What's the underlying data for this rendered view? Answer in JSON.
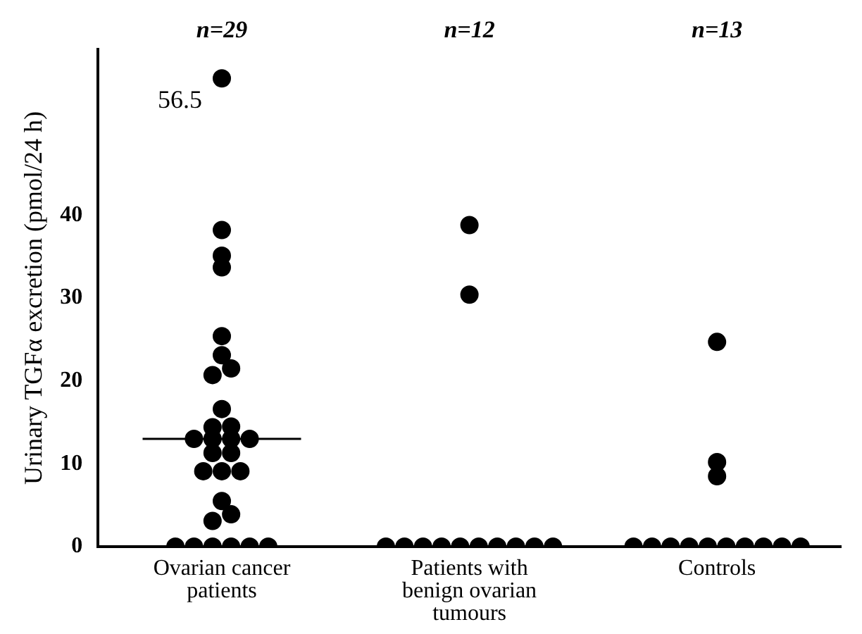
{
  "chart_data": {
    "type": "scatter",
    "ylabel": "Urinary TGFα excretion (pmol/24 h)",
    "categories": [
      "Ovarian cancer patients",
      "Patients with benign ovarian tumours",
      "Controls"
    ],
    "series": [
      {
        "color": "#000000",
        "x": [
          "Ovarian cancer patients",
          "Ovarian cancer patients",
          "Ovarian cancer patients",
          "Ovarian cancer patients",
          "Ovarian cancer patients",
          "Ovarian cancer patients",
          "Ovarian cancer patients",
          "Ovarian cancer patients",
          "Ovarian cancer patients",
          "Ovarian cancer patients",
          "Ovarian cancer patients",
          "Ovarian cancer patients",
          "Ovarian cancer patients",
          "Ovarian cancer patients",
          "Ovarian cancer patients",
          "Ovarian cancer patients",
          "Ovarian cancer patients",
          "Ovarian cancer patients",
          "Ovarian cancer patients",
          "Ovarian cancer patients",
          "Ovarian cancer patients",
          "Ovarian cancer patients",
          "Ovarian cancer patients",
          "Ovarian cancer patients",
          "Ovarian cancer patients",
          "Ovarian cancer patients",
          "Ovarian cancer patients",
          "Ovarian cancer patients",
          "Ovarian cancer patients"
        ],
        "values": [
          56.5,
          38.2,
          35.1,
          33.7,
          25.4,
          23.1,
          21.5,
          20.7,
          16.6,
          14.5,
          14.4,
          13,
          13,
          13,
          13,
          11.3,
          11.3,
          9.1,
          9.1,
          9.1,
          5.5,
          3.9,
          3.1,
          0,
          0,
          0,
          0,
          0,
          0
        ],
        "value_labels": [
          "56.5",
          null,
          null,
          null,
          null,
          null,
          null,
          null,
          null,
          null,
          null,
          null,
          null,
          null,
          null,
          null,
          null,
          null,
          null,
          null,
          null,
          null,
          null,
          null,
          null,
          null,
          null,
          null,
          null
        ]
      },
      {
        "color": "#000000",
        "x": [
          "Patients with benign ovarian tumours",
          "Patients with benign ovarian tumours",
          "Patients with benign ovarian tumours",
          "Patients with benign ovarian tumours",
          "Patients with benign ovarian tumours",
          "Patients with benign ovarian tumours",
          "Patients with benign ovarian tumours",
          "Patients with benign ovarian tumours",
          "Patients with benign ovarian tumours",
          "Patients with benign ovarian tumours",
          "Patients with benign ovarian tumours",
          "Patients with benign ovarian tumours"
        ],
        "values": [
          38.8,
          30.4,
          0,
          0,
          0,
          0,
          0,
          0,
          0,
          0,
          0,
          0
        ]
      },
      {
        "color": "#000000",
        "x": [
          "Controls",
          "Controls",
          "Controls",
          "Controls",
          "Controls",
          "Controls",
          "Controls",
          "Controls",
          "Controls",
          "Controls",
          "Controls",
          "Controls",
          "Controls"
        ],
        "values": [
          24.7,
          10.2,
          8.5,
          0,
          0,
          0,
          0,
          0,
          0,
          0,
          0,
          0,
          0
        ]
      }
    ],
    "ylim": [
      0,
      60
    ],
    "yticks": [
      0,
      10,
      20,
      30,
      40
    ],
    "ref_lines": [
      {
        "axis": "y",
        "value": 13,
        "color": "#000000"
      }
    ],
    "annotations": [
      "n=29",
      "n=12",
      "n=13"
    ],
    "marker": "circle",
    "grid": false,
    "legend": false
  }
}
